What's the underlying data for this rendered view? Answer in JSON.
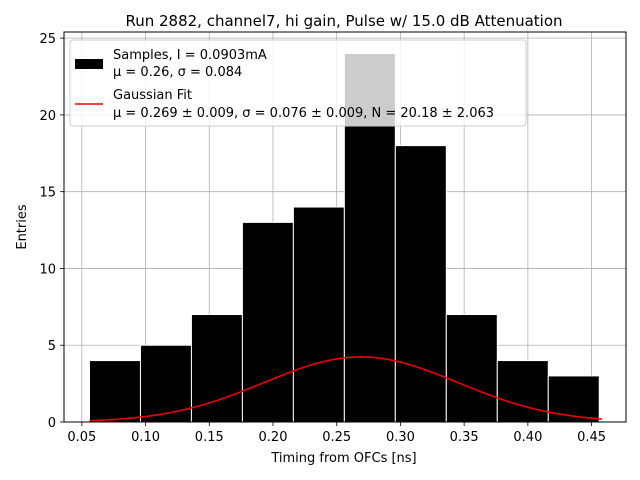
{
  "chart_data": {
    "type": "bar",
    "title": "Run 2882, channel7, hi gain, Pulse w/ 15.0 dB Attenuation",
    "xlabel": "Timing from OFCs [ns]",
    "ylabel": "Entries",
    "xlim": [
      0.036,
      0.477
    ],
    "ylim": [
      0,
      25.4
    ],
    "xticks": [
      0.05,
      0.1,
      0.15,
      0.2,
      0.25,
      0.3,
      0.35,
      0.4,
      0.45
    ],
    "xtick_labels": [
      "0.05",
      "0.10",
      "0.15",
      "0.20",
      "0.25",
      "0.30",
      "0.35",
      "0.40",
      "0.45"
    ],
    "yticks": [
      0,
      5,
      10,
      15,
      20,
      25
    ],
    "ytick_labels": [
      "0",
      "5",
      "10",
      "15",
      "20",
      "25"
    ],
    "grid": true,
    "legend_position": "top-left",
    "histogram": {
      "bin_edges": [
        0.056,
        0.096,
        0.136,
        0.176,
        0.216,
        0.256,
        0.296,
        0.336,
        0.376,
        0.416,
        0.456
      ],
      "counts": [
        4,
        5,
        7,
        13,
        14,
        24,
        18,
        7,
        4,
        3
      ],
      "color": "#000000",
      "edge_color": "#ffffff",
      "label_line1": "Samples, I = 0.0903mA",
      "label_line2": "μ = 0.26, σ = 0.084"
    },
    "fit": {
      "type": "gaussian",
      "mu": 0.269,
      "sigma": 0.076,
      "N": 20.18,
      "x_range": [
        0.056,
        0.458
      ],
      "color": "#ee0000",
      "label_line1": "Gaussian Fit",
      "label_line2": "μ = 0.269 ± 0.009, σ = 0.076 ± 0.009, N = 20.18 ± 2.063"
    }
  }
}
